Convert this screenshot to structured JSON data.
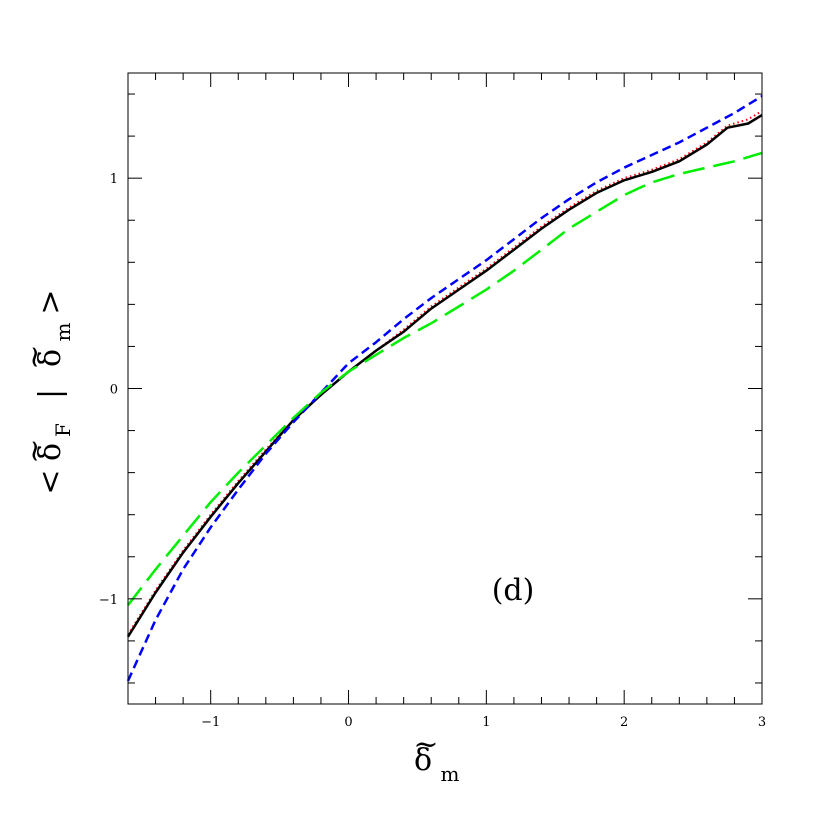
{
  "chart_data": {
    "type": "line",
    "panel_label": "(d)",
    "xlabel": {
      "symbol": "δ",
      "accent": "~",
      "subscript": "m"
    },
    "ylabel": {
      "open": "<",
      "symbol_f": "δ",
      "accent_f": "~",
      "subscript_f": "F",
      "bar": "|",
      "symbol_m": "δ",
      "accent_m": "~",
      "subscript_m": "m",
      "close": ">"
    },
    "xlim": [
      -1.6,
      3.0
    ],
    "ylim": [
      -1.5,
      1.5
    ],
    "xticks": [
      -1,
      0,
      1,
      2,
      3
    ],
    "xtick_labels": [
      "−1",
      "0",
      "1",
      "2",
      "3"
    ],
    "yticks": [
      -1,
      0,
      1
    ],
    "ytick_labels": [
      "−1",
      "0",
      "1"
    ],
    "x_minor_step": 0.2,
    "y_minor_step": 0.2,
    "grid": false,
    "series": [
      {
        "color": "#ff0000",
        "style": "dotted",
        "x": [
          -1.6,
          -1.4,
          -1.2,
          -1.0,
          -0.8,
          -0.6,
          -0.4,
          -0.2,
          0.0,
          0.2,
          0.4,
          0.6,
          0.8,
          1.0,
          1.2,
          1.4,
          1.6,
          1.8,
          2.0,
          2.2,
          2.4,
          2.6,
          2.75,
          2.9,
          3.0
        ],
        "y": [
          -1.17,
          -0.96,
          -0.77,
          -0.6,
          -0.44,
          -0.29,
          -0.15,
          -0.03,
          0.08,
          0.18,
          0.28,
          0.39,
          0.48,
          0.57,
          0.67,
          0.77,
          0.86,
          0.94,
          1.0,
          1.04,
          1.09,
          1.17,
          1.25,
          1.28,
          1.32
        ]
      },
      {
        "color": "#000000",
        "style": "solid",
        "x": [
          -1.6,
          -1.4,
          -1.2,
          -1.0,
          -0.8,
          -0.6,
          -0.4,
          -0.2,
          0.0,
          0.2,
          0.4,
          0.6,
          0.8,
          1.0,
          1.2,
          1.4,
          1.6,
          1.8,
          2.0,
          2.2,
          2.4,
          2.6,
          2.75,
          2.9,
          3.0
        ],
        "y": [
          -1.18,
          -0.97,
          -0.78,
          -0.61,
          -0.45,
          -0.3,
          -0.15,
          -0.03,
          0.08,
          0.18,
          0.27,
          0.38,
          0.47,
          0.56,
          0.66,
          0.76,
          0.85,
          0.93,
          0.99,
          1.03,
          1.08,
          1.16,
          1.24,
          1.26,
          1.3
        ]
      },
      {
        "color": "#0000ff",
        "style": "short-dash",
        "x": [
          -1.6,
          -1.4,
          -1.2,
          -1.0,
          -0.8,
          -0.6,
          -0.4,
          -0.2,
          0.0,
          0.2,
          0.4,
          0.6,
          0.8,
          1.0,
          1.2,
          1.4,
          1.6,
          1.8,
          2.0,
          2.2,
          2.4,
          2.6,
          2.8,
          3.0
        ],
        "y": [
          -1.39,
          -1.1,
          -0.86,
          -0.66,
          -0.48,
          -0.31,
          -0.16,
          -0.02,
          0.12,
          0.22,
          0.33,
          0.43,
          0.52,
          0.61,
          0.71,
          0.81,
          0.9,
          0.98,
          1.05,
          1.11,
          1.17,
          1.24,
          1.31,
          1.39
        ]
      },
      {
        "color": "#00ee00",
        "style": "long-dash",
        "x": [
          -1.6,
          -1.4,
          -1.2,
          -1.0,
          -0.8,
          -0.6,
          -0.4,
          -0.2,
          0.0,
          0.2,
          0.4,
          0.6,
          0.8,
          1.0,
          1.2,
          1.4,
          1.6,
          1.8,
          2.0,
          2.2,
          2.4,
          2.6,
          2.8,
          3.0
        ],
        "y": [
          -1.03,
          -0.86,
          -0.7,
          -0.54,
          -0.4,
          -0.27,
          -0.14,
          -0.02,
          0.08,
          0.16,
          0.24,
          0.31,
          0.39,
          0.47,
          0.56,
          0.66,
          0.76,
          0.84,
          0.92,
          0.98,
          1.02,
          1.05,
          1.08,
          1.12
        ]
      }
    ]
  }
}
